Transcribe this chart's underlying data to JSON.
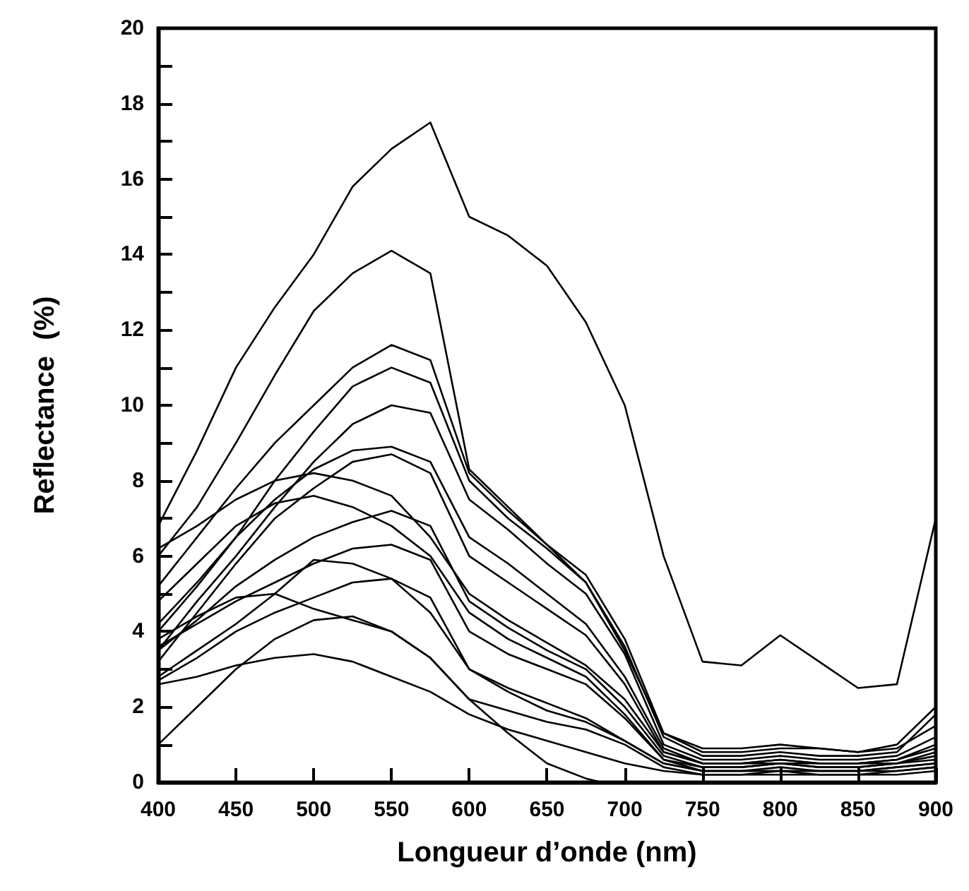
{
  "chart_data": {
    "type": "line",
    "xlabel": "Longueur d’onde (nm)",
    "ylabel": "Reflectance  (%)",
    "x": [
      400,
      425,
      450,
      475,
      500,
      525,
      550,
      575,
      600,
      625,
      650,
      675,
      700,
      725,
      750,
      775,
      800,
      825,
      850,
      875,
      900
    ],
    "xlim": [
      400,
      900
    ],
    "xticks": [
      400,
      450,
      500,
      550,
      600,
      650,
      700,
      750,
      800,
      850,
      900
    ],
    "ylim": [
      0,
      20
    ],
    "yticks": [
      0,
      {
        "value": 1,
        "label": null
      },
      2,
      {
        "value": 3,
        "label": null
      },
      4,
      {
        "value": 5,
        "label": null
      },
      6,
      {
        "value": 7,
        "label": null
      },
      8,
      {
        "value": 9,
        "label": null
      },
      10,
      {
        "value": 11,
        "label": null
      },
      12,
      {
        "value": 13,
        "label": null
      },
      14,
      {
        "value": 15,
        "label": null
      },
      16,
      {
        "value": 17,
        "label": null
      },
      18,
      {
        "value": 19,
        "label": null
      },
      20
    ],
    "grid": false,
    "marker": "none",
    "line_style": "solid",
    "series": [
      {
        "color": "#000000",
        "values": [
          6.8,
          8.8,
          11.0,
          12.6,
          14.0,
          15.8,
          16.8,
          17.5,
          15.0,
          14.5,
          13.7,
          12.2,
          10.0,
          6.0,
          3.2,
          3.1,
          3.9,
          3.2,
          2.5,
          2.6,
          7.0
        ]
      },
      {
        "color": "#000000",
        "values": [
          6.0,
          7.3,
          9.0,
          10.8,
          12.5,
          13.5,
          14.1,
          13.5,
          8.3,
          7.3,
          6.3,
          5.3,
          3.5,
          1.3,
          0.8,
          0.8,
          0.9,
          0.9,
          0.8,
          0.9,
          1.5
        ]
      },
      {
        "color": "#000000",
        "values": [
          5.2,
          6.5,
          7.8,
          9.0,
          10.0,
          11.0,
          11.6,
          11.2,
          8.2,
          7.2,
          6.3,
          5.5,
          3.8,
          1.3,
          0.9,
          0.9,
          1.0,
          0.9,
          0.8,
          1.0,
          2.0
        ]
      },
      {
        "color": "#000000",
        "values": [
          4.0,
          5.2,
          6.5,
          8.0,
          9.3,
          10.5,
          11.0,
          10.6,
          8.0,
          7.0,
          6.2,
          5.3,
          3.6,
          1.2,
          0.7,
          0.7,
          0.8,
          0.7,
          0.7,
          0.8,
          1.8
        ]
      },
      {
        "color": "#000000",
        "values": [
          3.5,
          4.8,
          6.0,
          7.3,
          8.5,
          9.5,
          10.0,
          9.8,
          7.5,
          6.7,
          5.8,
          5.0,
          3.4,
          1.0,
          0.6,
          0.6,
          0.7,
          0.6,
          0.6,
          0.7,
          1.2
        ]
      },
      {
        "color": "#000000",
        "values": [
          4.2,
          5.3,
          6.5,
          7.5,
          8.3,
          8.8,
          8.9,
          8.5,
          6.5,
          5.8,
          5.0,
          4.2,
          2.8,
          0.9,
          0.5,
          0.5,
          0.6,
          0.5,
          0.5,
          0.6,
          1.0
        ]
      },
      {
        "color": "#000000",
        "values": [
          3.2,
          4.5,
          5.8,
          7.0,
          7.8,
          8.5,
          8.7,
          8.2,
          6.0,
          5.3,
          4.6,
          3.9,
          2.6,
          0.8,
          0.5,
          0.5,
          0.6,
          0.5,
          0.5,
          0.6,
          0.9
        ]
      },
      {
        "color": "#000000",
        "values": [
          6.2,
          6.8,
          7.5,
          8.0,
          8.2,
          8.0,
          7.6,
          6.5,
          5.0,
          4.3,
          3.7,
          3.1,
          2.2,
          0.8,
          0.5,
          0.5,
          0.5,
          0.5,
          0.5,
          0.5,
          0.8
        ]
      },
      {
        "color": "#000000",
        "values": [
          4.8,
          5.8,
          6.8,
          7.4,
          7.6,
          7.3,
          6.8,
          6.0,
          4.5,
          3.8,
          3.3,
          2.8,
          1.8,
          0.6,
          0.4,
          0.4,
          0.5,
          0.4,
          0.4,
          0.5,
          0.7
        ]
      },
      {
        "color": "#000000",
        "values": [
          3.5,
          4.3,
          5.2,
          5.9,
          6.5,
          6.9,
          7.2,
          6.8,
          4.8,
          4.1,
          3.5,
          3.0,
          2.0,
          0.7,
          0.4,
          0.4,
          0.5,
          0.4,
          0.4,
          0.5,
          0.6
        ]
      },
      {
        "color": "#000000",
        "values": [
          3.6,
          4.2,
          4.8,
          5.3,
          5.8,
          6.2,
          6.3,
          5.9,
          4.0,
          3.4,
          3.0,
          2.6,
          1.7,
          0.6,
          0.3,
          0.3,
          0.4,
          0.3,
          0.3,
          0.4,
          0.5
        ]
      },
      {
        "color": "#000000",
        "values": [
          2.8,
          3.5,
          4.2,
          5.0,
          5.9,
          5.8,
          5.4,
          4.5,
          3.0,
          2.4,
          1.9,
          1.6,
          1.1,
          0.5,
          0.3,
          0.3,
          0.3,
          0.3,
          0.3,
          0.4,
          0.5
        ]
      },
      {
        "color": "#000000",
        "values": [
          3.8,
          4.4,
          4.9,
          5.0,
          4.6,
          4.3,
          4.0,
          3.3,
          2.2,
          1.9,
          1.6,
          1.4,
          1.0,
          0.4,
          0.2,
          0.2,
          0.3,
          0.2,
          0.2,
          0.3,
          0.4
        ]
      },
      {
        "color": "#000000",
        "values": [
          2.7,
          3.3,
          4.0,
          4.5,
          4.9,
          5.3,
          5.4,
          4.9,
          3.0,
          2.5,
          2.1,
          1.7,
          1.1,
          0.5,
          0.3,
          0.3,
          0.3,
          0.3,
          0.3,
          0.3,
          0.4
        ]
      },
      {
        "color": "#000000",
        "values": [
          2.6,
          2.8,
          3.1,
          3.3,
          3.4,
          3.2,
          2.8,
          2.4,
          1.8,
          1.4,
          1.1,
          0.8,
          0.5,
          0.3,
          0.2,
          0.2,
          0.2,
          0.2,
          0.2,
          0.2,
          0.3
        ]
      },
      {
        "color": "#000000",
        "x": [
          400,
          425,
          450,
          475,
          500,
          525,
          550,
          575,
          600,
          625,
          650,
          675,
          685
        ],
        "values": [
          1.0,
          2.0,
          3.0,
          3.8,
          4.3,
          4.4,
          4.0,
          3.3,
          2.2,
          1.3,
          0.5,
          0.1,
          0.0
        ]
      }
    ]
  }
}
